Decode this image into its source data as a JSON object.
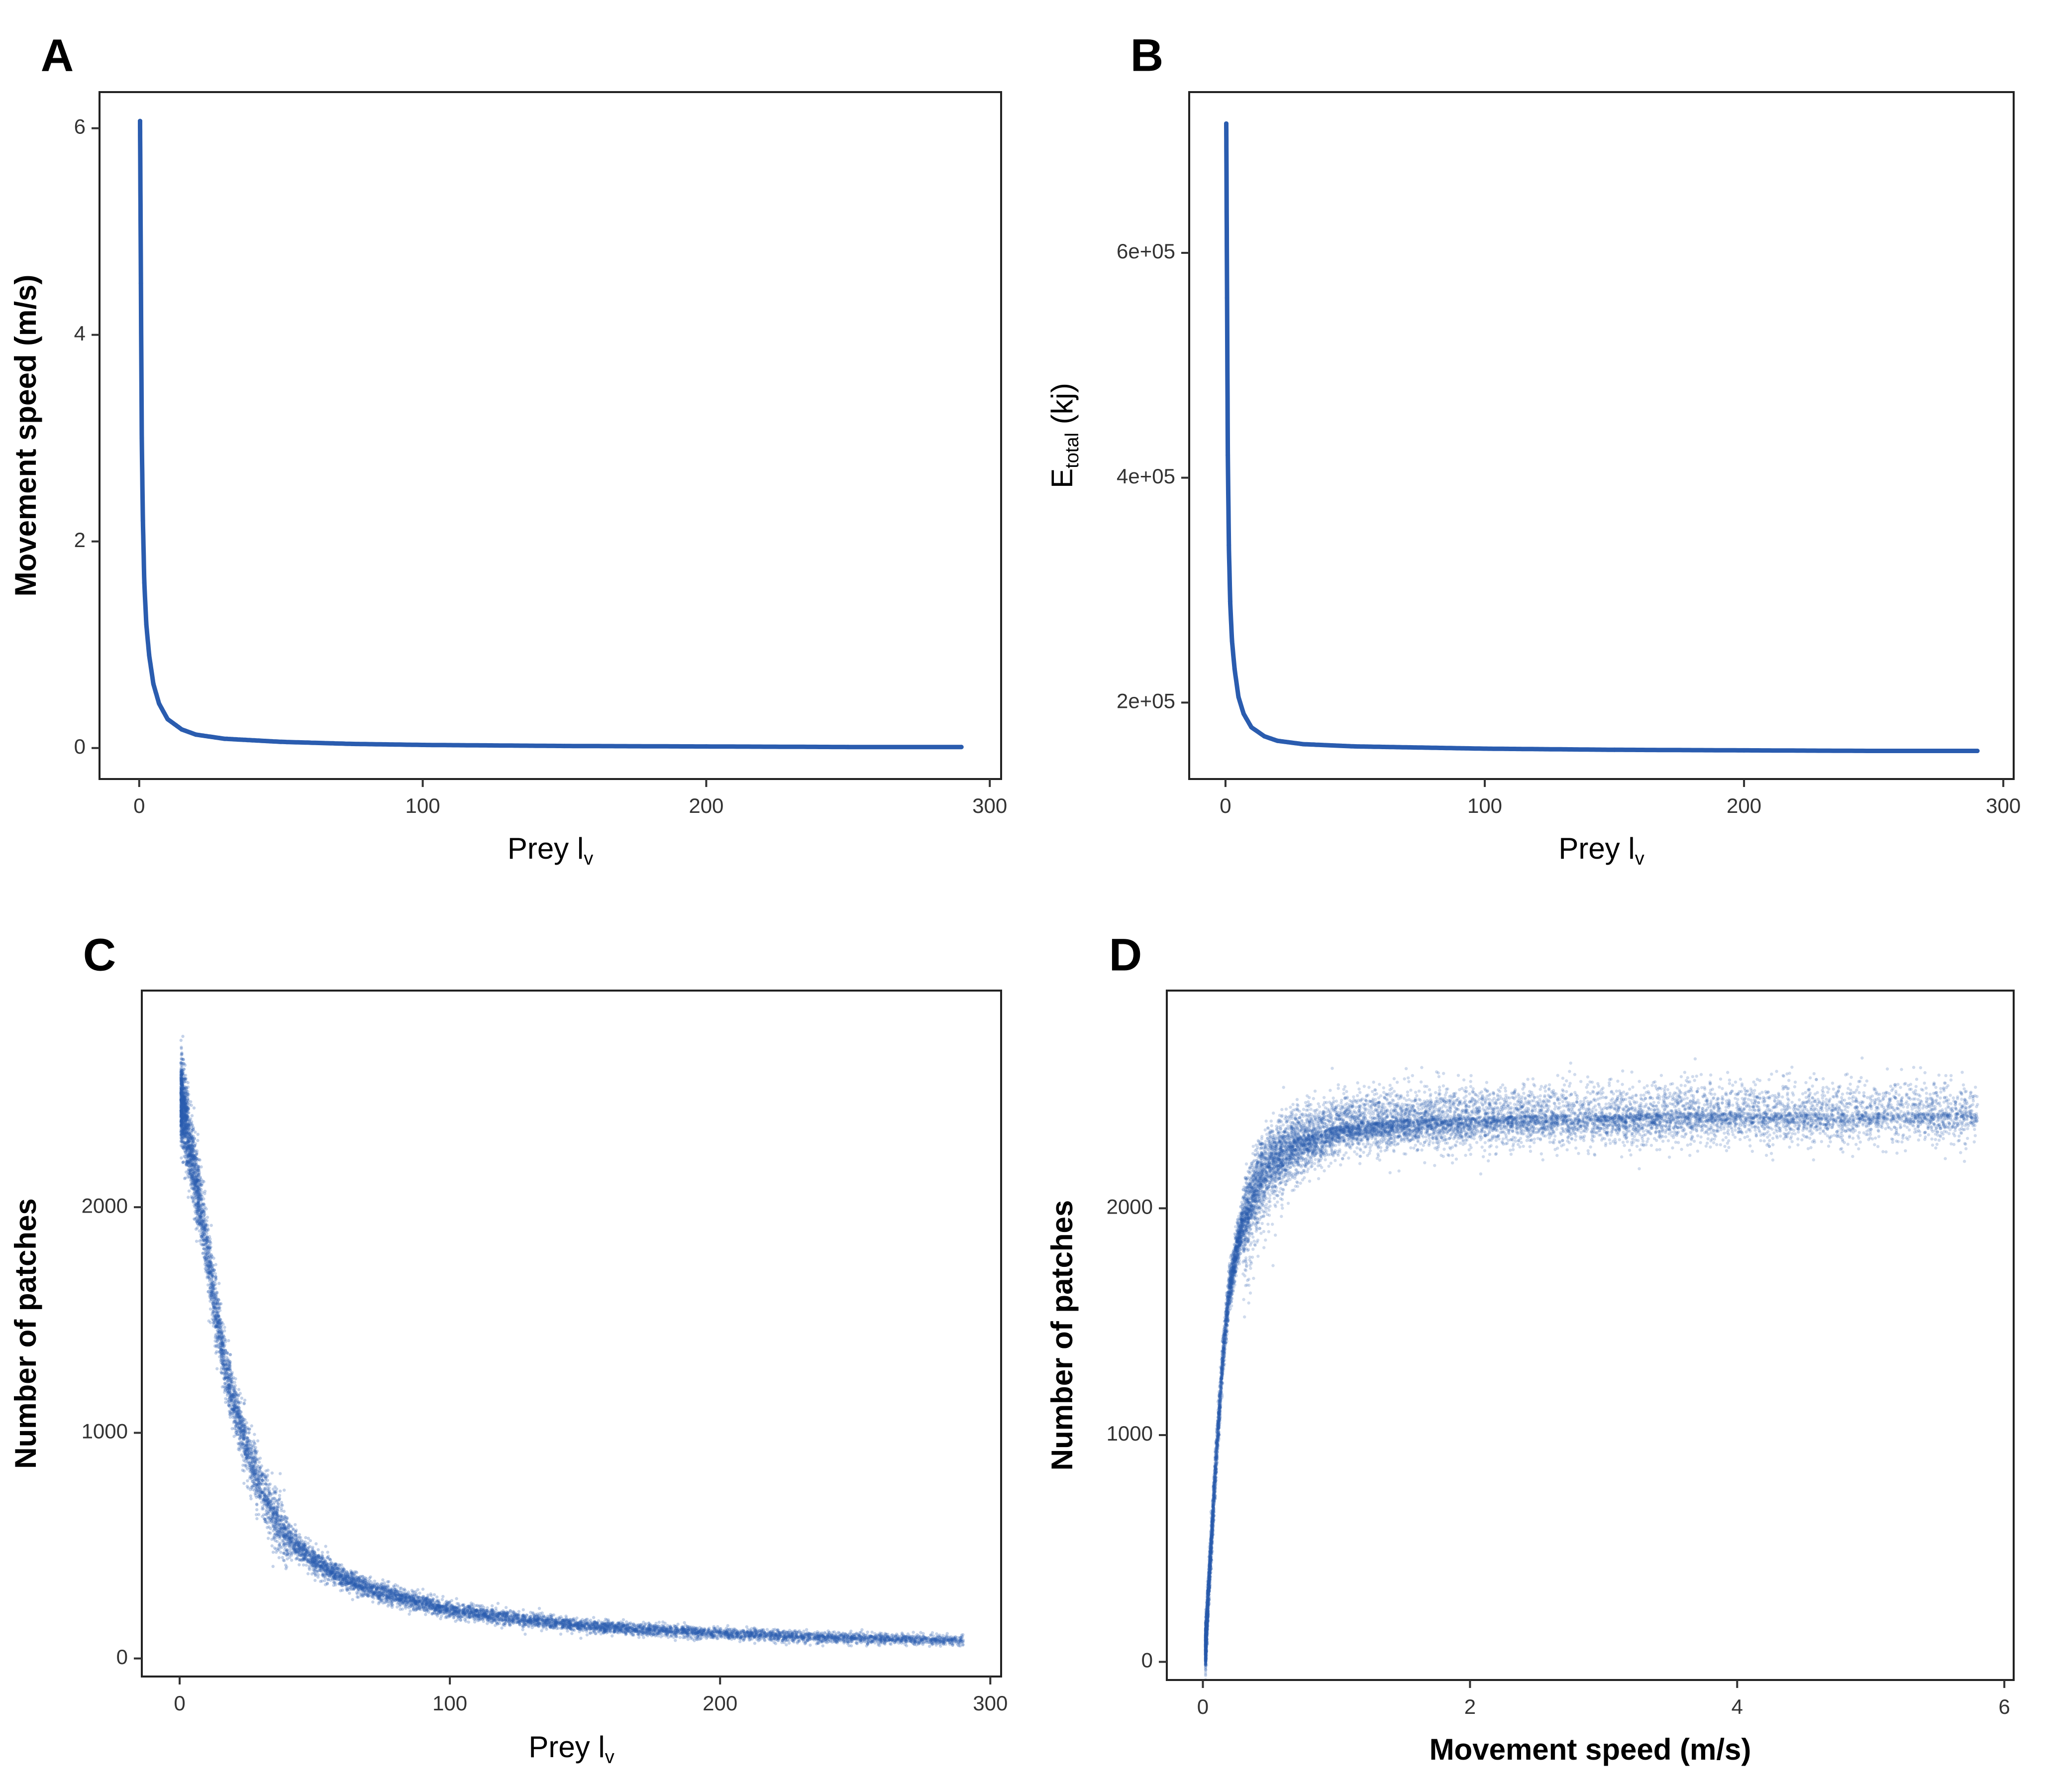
{
  "chart_data": [
    {
      "panel": "A",
      "type": "scatter",
      "xlabel": {
        "main": "Prey l",
        "sub": "v"
      },
      "ylabel": {
        "main": "Movement speed (m/s)",
        "sub": ""
      },
      "xlabel_bold": false,
      "ylabel_bold": true,
      "xlim": [
        -14,
        304
      ],
      "ylim": [
        -0.3,
        6.35
      ],
      "xticks": [
        0,
        100,
        200,
        300
      ],
      "xtick_labels": [
        "0",
        "100",
        "200",
        "300"
      ],
      "yticks": [
        0,
        2,
        4,
        6
      ],
      "ytick_labels": [
        "0",
        "2",
        "4",
        "6"
      ],
      "grid": false,
      "color": "#2a5caf",
      "series": [
        {
          "values": [
            [
              0.3,
              6.07
            ],
            [
              0.6,
              4.5
            ],
            [
              0.9,
              3.0
            ],
            [
              1.3,
              2.2
            ],
            [
              1.8,
              1.6
            ],
            [
              2.5,
              1.2
            ],
            [
              3.5,
              0.9
            ],
            [
              5,
              0.62
            ],
            [
              7,
              0.43
            ],
            [
              10,
              0.28
            ],
            [
              15,
              0.18
            ],
            [
              20,
              0.13
            ],
            [
              30,
              0.09
            ],
            [
              50,
              0.06
            ],
            [
              75,
              0.04
            ],
            [
              100,
              0.03
            ],
            [
              150,
              0.02
            ],
            [
              200,
              0.015
            ],
            [
              250,
              0.01
            ],
            [
              290,
              0.01
            ]
          ]
        }
      ]
    },
    {
      "panel": "B",
      "type": "scatter",
      "xlabel": {
        "main": "Prey l",
        "sub": "v"
      },
      "ylabel": {
        "main": "E",
        "sub": "total",
        "after": " (kj)"
      },
      "xlabel_bold": false,
      "ylabel_bold": false,
      "xlim": [
        -14,
        304
      ],
      "ylim": [
        132000,
        743000
      ],
      "xticks": [
        0,
        100,
        200,
        300
      ],
      "xtick_labels": [
        "0",
        "100",
        "200",
        "300"
      ],
      "yticks": [
        200000,
        400000,
        600000
      ],
      "ytick_labels": [
        "2e+05",
        "4e+05",
        "6e+05"
      ],
      "grid": false,
      "color": "#2a5caf",
      "series": [
        {
          "values": [
            [
              0.3,
              715000
            ],
            [
              0.6,
              560000
            ],
            [
              0.9,
              420000
            ],
            [
              1.3,
              340000
            ],
            [
              1.8,
              290000
            ],
            [
              2.5,
              255000
            ],
            [
              3.5,
              230000
            ],
            [
              5,
              205000
            ],
            [
              7,
              190000
            ],
            [
              10,
              178000
            ],
            [
              15,
              170000
            ],
            [
              20,
              166000
            ],
            [
              30,
              163000
            ],
            [
              50,
              161000
            ],
            [
              100,
              159000
            ],
            [
              150,
              158000
            ],
            [
              200,
              157500
            ],
            [
              250,
              157000
            ],
            [
              290,
              157000
            ]
          ]
        }
      ]
    },
    {
      "panel": "C",
      "type": "scatter",
      "xlabel": {
        "main": "Prey l",
        "sub": "v"
      },
      "ylabel": {
        "main": "Number of patches",
        "sub": ""
      },
      "xlabel_bold": false,
      "ylabel_bold": true,
      "xlim": [
        -14,
        304
      ],
      "ylim": [
        -80,
        2960
      ],
      "xticks": [
        0,
        100,
        200,
        300
      ],
      "xtick_labels": [
        "0",
        "100",
        "200",
        "300"
      ],
      "yticks": [
        0,
        1000,
        2000
      ],
      "ytick_labels": [
        "0",
        "1000",
        "2000"
      ],
      "grid": false,
      "color": "#2a5caf",
      "series": [
        {
          "values": [
            [
              0.5,
              2480
            ],
            [
              2,
              2400
            ],
            [
              4,
              2250
            ],
            [
              7,
              2050
            ],
            [
              10,
              1820
            ],
            [
              13,
              1580
            ],
            [
              16,
              1350
            ],
            [
              20,
              1130
            ],
            [
              25,
              920
            ],
            [
              30,
              760
            ],
            [
              35,
              630
            ],
            [
              40,
              540
            ],
            [
              50,
              430
            ],
            [
              60,
              360
            ],
            [
              75,
              290
            ],
            [
              100,
              215
            ],
            [
              125,
              175
            ],
            [
              150,
              145
            ],
            [
              175,
              125
            ],
            [
              200,
              110
            ],
            [
              230,
              97
            ],
            [
              260,
              87
            ],
            [
              290,
              80
            ]
          ]
        }
      ]
    },
    {
      "panel": "D",
      "type": "scatter",
      "xlabel": {
        "main": "Movement speed (m/s)",
        "sub": ""
      },
      "ylabel": {
        "main": "Number of patches",
        "sub": ""
      },
      "xlabel_bold": true,
      "ylabel_bold": true,
      "xlim": [
        -0.27,
        6.07
      ],
      "ylim": [
        -80,
        2960
      ],
      "xticks": [
        0,
        2,
        4,
        6
      ],
      "xtick_labels": [
        "0",
        "2",
        "4",
        "6"
      ],
      "yticks": [
        0,
        1000,
        2000
      ],
      "ytick_labels": [
        "0",
        "1000",
        "2000"
      ],
      "grid": false,
      "color": "#2a5caf",
      "series": [
        {
          "values": [
            [
              0.02,
              60
            ],
            [
              0.05,
              400
            ],
            [
              0.1,
              900
            ],
            [
              0.15,
              1350
            ],
            [
              0.2,
              1650
            ],
            [
              0.3,
              1950
            ],
            [
              0.4,
              2120
            ],
            [
              0.5,
              2220
            ],
            [
              0.7,
              2310
            ],
            [
              1.0,
              2360
            ],
            [
              1.5,
              2390
            ],
            [
              2.0,
              2400
            ],
            [
              2.5,
              2410
            ],
            [
              3.0,
              2410
            ],
            [
              3.5,
              2420
            ],
            [
              4.0,
              2420
            ],
            [
              4.5,
              2420
            ],
            [
              5.0,
              2420
            ],
            [
              5.5,
              2420
            ],
            [
              5.8,
              2420
            ]
          ]
        }
      ]
    }
  ]
}
